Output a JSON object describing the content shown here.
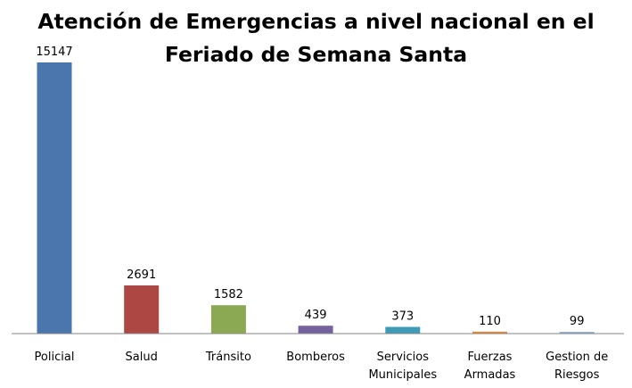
{
  "chart_data": {
    "type": "bar",
    "title": "Atención de Emergencias a nivel nacional en el Feriado de Semana Santa",
    "title_lines": [
      "Atención de Emergencias a nivel nacional en el",
      "Feriado de Semana Santa"
    ],
    "categories": [
      [
        "Policial"
      ],
      [
        "Salud"
      ],
      [
        "Tránsito"
      ],
      [
        "Bomberos"
      ],
      [
        "Servicios",
        "Municipales"
      ],
      [
        "Fuerzas",
        "Armadas"
      ],
      [
        "Gestion de",
        "Riesgos"
      ]
    ],
    "values": [
      15147,
      2691,
      1582,
      439,
      373,
      110,
      99
    ],
    "value_labels": [
      "15147",
      "2691",
      "1582",
      "439",
      "373",
      "110",
      "99"
    ],
    "colors": [
      "#4a75ad",
      "#ad4744",
      "#8ba853",
      "#7560a0",
      "#3d9bb5",
      "#e08a3c",
      "#98b0d4"
    ],
    "ylim": [
      0,
      15147
    ],
    "grid": false,
    "legend": "none",
    "xlabel": "",
    "ylabel": ""
  }
}
